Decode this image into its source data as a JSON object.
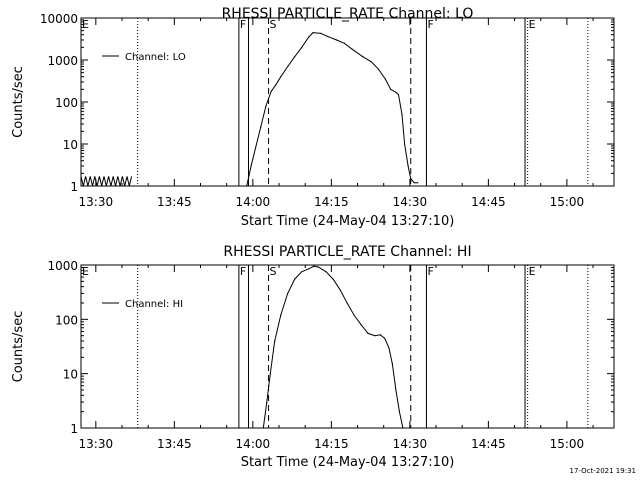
{
  "footer": {
    "timestamp": "17-Oct-2021 19:31"
  },
  "chart_data": [
    {
      "type": "line",
      "title": "RHESSI PARTICLE_RATE Channel: LO",
      "xlabel": "Start Time (24-May-04 13:27:10)",
      "ylabel": "Counts/sec",
      "yscale": "log",
      "ylim": [
        1,
        10000
      ],
      "xlim": [
        "13:27:10",
        "15:09:00"
      ],
      "x_ticks": [
        "13:30",
        "13:45",
        "14:00",
        "14:15",
        "14:30",
        "14:45",
        "15:00"
      ],
      "y_ticks": [
        "1",
        "10",
        "100",
        "1000",
        "10000"
      ],
      "legend": {
        "position": "top-left",
        "entries": [
          "Channel: LO"
        ]
      },
      "markers": [
        {
          "label": "E",
          "time": "13:27:10",
          "style": "solid"
        },
        {
          "label": "",
          "time": "13:38:00",
          "style": "dotted"
        },
        {
          "label": "F",
          "time": "13:57:20",
          "style": "solid"
        },
        {
          "label": "",
          "time": "13:59:10",
          "style": "solid"
        },
        {
          "label": "S",
          "time": "14:03:00",
          "style": "dashed"
        },
        {
          "label": "",
          "time": "14:30:10",
          "style": "dashed"
        },
        {
          "label": "F",
          "time": "14:33:10",
          "style": "solid"
        },
        {
          "label": "",
          "time": "14:52:00",
          "style": "solid"
        },
        {
          "label": "E",
          "time": "14:52:30",
          "style": "dotted"
        },
        {
          "label": "",
          "time": "15:04:00",
          "style": "dotted"
        }
      ],
      "series": [
        {
          "name": "Channel: LO",
          "noise": {
            "from": "13:27:10",
            "to": "13:37:00",
            "level": 1.3
          },
          "points": [
            [
              "13:58:50",
              1
            ],
            [
              "13:59:40",
              3
            ],
            [
              "14:00:30",
              8
            ],
            [
              "14:01:30",
              25
            ],
            [
              "14:02:30",
              80
            ],
            [
              "14:03:30",
              180
            ],
            [
              "14:04:20",
              250
            ],
            [
              "14:05:20",
              400
            ],
            [
              "14:06:40",
              700
            ],
            [
              "14:08:00",
              1200
            ],
            [
              "14:09:20",
              2000
            ],
            [
              "14:10:40",
              3500
            ],
            [
              "14:11:30",
              4500
            ],
            [
              "14:13:00",
              4300
            ],
            [
              "14:14:20",
              3600
            ],
            [
              "14:16:00",
              3000
            ],
            [
              "14:17:30",
              2500
            ],
            [
              "14:19:00",
              1800
            ],
            [
              "14:21:00",
              1200
            ],
            [
              "14:22:40",
              900
            ],
            [
              "14:24:00",
              600
            ],
            [
              "14:25:20",
              350
            ],
            [
              "14:26:20",
              200
            ],
            [
              "14:27:20",
              170
            ],
            [
              "14:27:50",
              150
            ],
            [
              "14:28:30",
              50
            ],
            [
              "14:29:00",
              10
            ],
            [
              "14:29:40",
              3
            ],
            [
              "14:30:10",
              1.5
            ],
            [
              "14:30:50",
              1.2
            ],
            [
              "14:31:30",
              1.2
            ]
          ]
        }
      ]
    },
    {
      "type": "line",
      "title": "RHESSI PARTICLE_RATE Channel: HI",
      "xlabel": "Start Time (24-May-04 13:27:10)",
      "ylabel": "Counts/sec",
      "yscale": "log",
      "ylim": [
        1,
        1000
      ],
      "xlim": [
        "13:27:10",
        "15:09:00"
      ],
      "x_ticks": [
        "13:30",
        "13:45",
        "14:00",
        "14:15",
        "14:30",
        "14:45",
        "15:00"
      ],
      "y_ticks": [
        "1",
        "10",
        "100",
        "1000"
      ],
      "legend": {
        "position": "top-left",
        "entries": [
          "Channel: HI"
        ]
      },
      "markers": [
        {
          "label": "E",
          "time": "13:27:10",
          "style": "solid"
        },
        {
          "label": "",
          "time": "13:38:00",
          "style": "dotted"
        },
        {
          "label": "F",
          "time": "13:57:20",
          "style": "solid"
        },
        {
          "label": "",
          "time": "13:59:10",
          "style": "solid"
        },
        {
          "label": "S",
          "time": "14:03:00",
          "style": "dashed"
        },
        {
          "label": "",
          "time": "14:30:10",
          "style": "dashed"
        },
        {
          "label": "F",
          "time": "14:33:10",
          "style": "solid"
        },
        {
          "label": "",
          "time": "14:52:00",
          "style": "solid"
        },
        {
          "label": "E",
          "time": "14:52:30",
          "style": "dotted"
        },
        {
          "label": "",
          "time": "15:04:00",
          "style": "dotted"
        }
      ],
      "series": [
        {
          "name": "Channel: HI",
          "points": [
            [
              "14:02:00",
              1
            ],
            [
              "14:02:40",
              3
            ],
            [
              "14:03:20",
              10
            ],
            [
              "14:04:10",
              40
            ],
            [
              "14:05:20",
              120
            ],
            [
              "14:06:40",
              300
            ],
            [
              "14:08:00",
              550
            ],
            [
              "14:09:20",
              750
            ],
            [
              "14:10:40",
              850
            ],
            [
              "14:11:40",
              950
            ],
            [
              "14:12:30",
              920
            ],
            [
              "14:14:00",
              750
            ],
            [
              "14:15:20",
              550
            ],
            [
              "14:16:40",
              350
            ],
            [
              "14:18:00",
              200
            ],
            [
              "14:19:20",
              120
            ],
            [
              "14:20:40",
              80
            ],
            [
              "14:22:00",
              55
            ],
            [
              "14:23:20",
              50
            ],
            [
              "14:24:20",
              52
            ],
            [
              "14:25:10",
              45
            ],
            [
              "14:26:00",
              30
            ],
            [
              "14:26:40",
              15
            ],
            [
              "14:27:20",
              5
            ],
            [
              "14:28:00",
              2
            ],
            [
              "14:28:40",
              1
            ]
          ]
        }
      ]
    }
  ]
}
